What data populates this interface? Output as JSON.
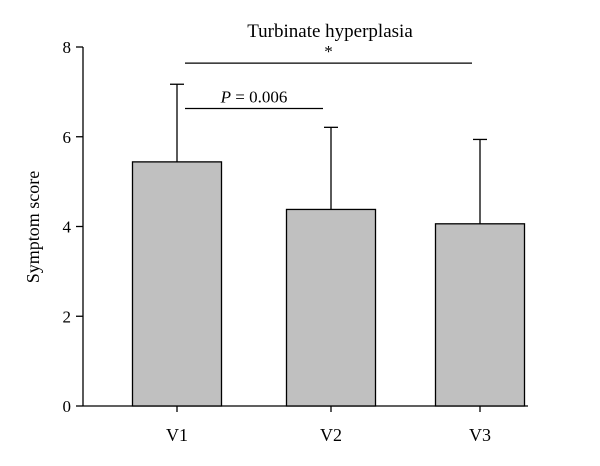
{
  "chart_data": {
    "type": "bar",
    "title": "Turbinate hyperplasia",
    "xlabel": "",
    "ylabel": "Symptom score",
    "categories": [
      "V1",
      "V2",
      "V3"
    ],
    "values": [
      5.44,
      4.38,
      4.06
    ],
    "error_upper": [
      7.17,
      6.21,
      5.94
    ],
    "ylim": [
      0,
      8
    ],
    "yticks": [
      0,
      2,
      4,
      6,
      8
    ],
    "ytick_labels": [
      "0",
      "2",
      "4",
      "6",
      "8"
    ],
    "grid": false,
    "legend": "none",
    "bar_color": "#c0c0c0",
    "annotations": [
      {
        "from": "V1",
        "to": "V3",
        "level": 7.64,
        "label_prefix": "",
        "label": "*"
      },
      {
        "from": "V1",
        "to": "V2",
        "level": 6.63,
        "label_prefix": "P",
        "label": " = 0.006"
      }
    ]
  }
}
